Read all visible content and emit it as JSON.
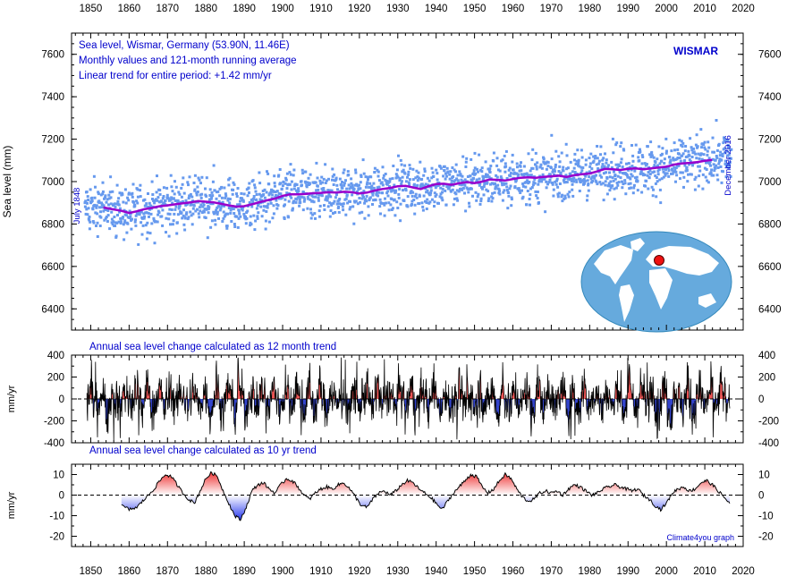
{
  "chart_data": [
    {
      "type": "scatter",
      "xlim": [
        1845,
        2020
      ],
      "ylim": [
        6300,
        7700
      ],
      "ylabel": "Sea level (mm)",
      "info_lines": [
        "Sea level, Wismar, Germany (53.90N, 11.46E)",
        "Monthly values and 121-month running average",
        "Linear trend for entire period: +1.42 mm/yr"
      ],
      "station": "WISMAR",
      "start_label": "July 1848",
      "end_label": "December 2016",
      "x_ticks": [
        1850,
        1860,
        1870,
        1880,
        1890,
        1900,
        1910,
        1920,
        1930,
        1940,
        1950,
        1960,
        1970,
        1980,
        1990,
        2000,
        2010,
        2020
      ],
      "y_ticks": [
        6400,
        6600,
        6800,
        7000,
        7200,
        7400,
        7600
      ],
      "colors": {
        "monthly": "#6699ee",
        "running_average": "#9900cc",
        "text": "#0000cc",
        "map_ocean": "#66aadd",
        "marker": "#ee1111"
      },
      "linear_trend_mm_per_yr": 1.42,
      "series": [
        {
          "name": "121-month running average",
          "x": [
            1853.3,
            1855,
            1858,
            1860,
            1862,
            1864,
            1866,
            1868,
            1870,
            1872,
            1874,
            1876,
            1878,
            1880,
            1882,
            1884,
            1886,
            1888,
            1890,
            1892,
            1894,
            1896,
            1898,
            1900,
            1902,
            1904,
            1906,
            1908,
            1910,
            1912,
            1914,
            1916,
            1918,
            1920,
            1922,
            1924,
            1926,
            1928,
            1930,
            1932,
            1934,
            1936,
            1938,
            1940,
            1942,
            1944,
            1946,
            1948,
            1950,
            1952,
            1954,
            1956,
            1958,
            1960,
            1962,
            1964,
            1966,
            1968,
            1970,
            1972,
            1974,
            1976,
            1978,
            1980,
            1982,
            1984,
            1986,
            1988,
            1990,
            1992,
            1994,
            1996,
            1998,
            2000,
            2002,
            2004,
            2006,
            2008,
            2010,
            2011.9
          ],
          "y": [
            6878,
            6872,
            6862,
            6852,
            6860,
            6870,
            6876,
            6884,
            6888,
            6893,
            6898,
            6902,
            6908,
            6905,
            6902,
            6895,
            6888,
            6882,
            6884,
            6893,
            6903,
            6912,
            6920,
            6933,
            6940,
            6940,
            6942,
            6945,
            6947,
            6950,
            6948,
            6952,
            6950,
            6944,
            6948,
            6958,
            6965,
            6970,
            6978,
            6980,
            6972,
            6965,
            6978,
            6988,
            6990,
            6985,
            6992,
            6998,
            6993,
            7000,
            7010,
            7008,
            7005,
            7012,
            7018,
            7020,
            7018,
            7022,
            7025,
            7028,
            7022,
            7030,
            7035,
            7038,
            7048,
            7060,
            7058,
            7055,
            7060,
            7062,
            7058,
            7062,
            7066,
            7070,
            7080,
            7085,
            7088,
            7092,
            7098,
            7102
          ]
        }
      ]
    },
    {
      "type": "area",
      "title": "Annual sea level change calculated as 12 month trend",
      "ylabel": "mm/yr",
      "xlim": [
        1845,
        2020
      ],
      "ylim": [
        -400,
        400
      ],
      "y_ticks": [
        -400,
        -200,
        0,
        200,
        400
      ],
      "x_range": [
        1849,
        2016.5
      ],
      "positive_color": "#ee5555",
      "negative_color": "#3344cc",
      "amplitude_typical": 180,
      "amplitude_max": 380
    },
    {
      "type": "area",
      "title": "Annual sea level change calculated as 10 yr trend",
      "ylabel": "mm/yr",
      "xlim": [
        1845,
        2020
      ],
      "ylim": [
        -25,
        15
      ],
      "y_ticks": [
        -20,
        -10,
        0,
        10
      ],
      "positive_color": "#ee3333",
      "negative_color": "#2233ee",
      "credit": "Climate4you graph",
      "series": [
        {
          "name": "10 yr trend",
          "x": [
            1858,
            1860,
            1862,
            1863.5,
            1865,
            1866.5,
            1868,
            1869.5,
            1871,
            1872.5,
            1874,
            1875.5,
            1877,
            1878.5,
            1880,
            1881.5,
            1883,
            1884.5,
            1886,
            1887.5,
            1889,
            1890.5,
            1892,
            1893.5,
            1895,
            1896.5,
            1898,
            1899.5,
            1901,
            1902.5,
            1904,
            1905.5,
            1907,
            1908.5,
            1910,
            1911.5,
            1913,
            1914.5,
            1916,
            1917.5,
            1919,
            1920.5,
            1922,
            1923.5,
            1925,
            1926.5,
            1928,
            1929.5,
            1931,
            1932.5,
            1934,
            1935.5,
            1937,
            1938.5,
            1940,
            1941.5,
            1943,
            1944.5,
            1946,
            1947.5,
            1949,
            1950.5,
            1952,
            1953.5,
            1955,
            1956.5,
            1958,
            1959.5,
            1961,
            1962.5,
            1964,
            1965.5,
            1967,
            1968.5,
            1970,
            1971.5,
            1973,
            1974.5,
            1976,
            1977.5,
            1979,
            1980.5,
            1982,
            1983.5,
            1985,
            1986.5,
            1988,
            1989.5,
            1991,
            1992.5,
            1994,
            1995.5,
            1997,
            1998.5,
            2000,
            2001.5,
            2003,
            2004.5,
            2006,
            2007.5,
            2009,
            2010.5,
            2012,
            2013.5,
            2015,
            2016.5
          ],
          "y": [
            -5,
            -7,
            -6,
            -3,
            0,
            3,
            7,
            10,
            9,
            5,
            1,
            -2,
            -4,
            2,
            8,
            11,
            9,
            2,
            -4,
            -10,
            -12,
            -6,
            2,
            5,
            6,
            3,
            1,
            5,
            8,
            7,
            4,
            0,
            -2,
            1,
            3,
            4,
            3,
            5,
            6,
            3,
            -1,
            -5,
            -6,
            -2,
            1,
            2,
            0,
            2,
            5,
            7,
            6,
            3,
            1,
            -1,
            -4,
            -7,
            -3,
            1,
            4,
            7,
            10,
            9,
            4,
            1,
            3,
            7,
            10,
            8,
            3,
            -1,
            -3,
            -2,
            1,
            2,
            1,
            2,
            0,
            3,
            5,
            4,
            2,
            0,
            1,
            3,
            4,
            5,
            4,
            3,
            2,
            3,
            0,
            -2,
            -5,
            -7,
            -4,
            1,
            3,
            4,
            2,
            3,
            6,
            7,
            5,
            2,
            -1,
            -4
          ]
        }
      ]
    }
  ]
}
